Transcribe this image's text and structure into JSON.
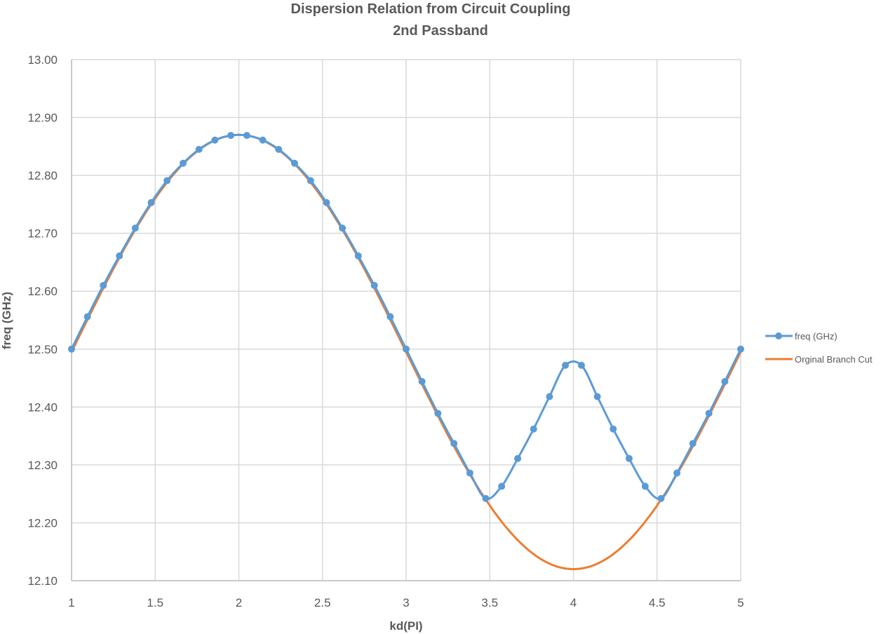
{
  "chart_data": {
    "type": "line",
    "title": "Dispersion Relation from Circuit Coupling",
    "subtitle": "2nd Passband",
    "xlabel": "kd(PI)",
    "ylabel": "freq (GHz)",
    "xlim": [
      1,
      5
    ],
    "ylim": [
      12.1,
      13.0
    ],
    "xticks": [
      "1",
      "1.5",
      "2",
      "2.5",
      "3",
      "3.5",
      "4",
      "4.5",
      "5"
    ],
    "yticks": [
      "13.00",
      "12.90",
      "12.80",
      "12.70",
      "12.60",
      "12.50",
      "12.40",
      "12.30",
      "12.20",
      "12.10"
    ],
    "grid": true,
    "legend_position": "right",
    "series": [
      {
        "name": "freq (GHz)",
        "color": "#5B9BD5",
        "style": "smooth-line-with-markers",
        "x": [
          1.0,
          1.095,
          1.19,
          1.286,
          1.381,
          1.476,
          1.571,
          1.667,
          1.762,
          1.857,
          1.952,
          2.048,
          2.143,
          2.238,
          2.333,
          2.429,
          2.524,
          2.619,
          2.714,
          2.81,
          2.905,
          3.0,
          3.095,
          3.19,
          3.286,
          3.381,
          3.476,
          3.571,
          3.667,
          3.762,
          3.857,
          3.952,
          4.048,
          4.143,
          4.238,
          4.333,
          4.429,
          4.524,
          4.619,
          4.714,
          4.81,
          4.905,
          5.0
        ],
        "values": [
          12.5,
          12.556,
          12.61,
          12.661,
          12.709,
          12.753,
          12.791,
          12.821,
          12.845,
          12.861,
          12.869,
          12.869,
          12.861,
          12.845,
          12.821,
          12.791,
          12.753,
          12.709,
          12.661,
          12.61,
          12.556,
          12.5,
          12.444,
          12.389,
          12.337,
          12.286,
          12.242,
          12.263,
          12.311,
          12.362,
          12.418,
          12.472,
          12.472,
          12.418,
          12.362,
          12.311,
          12.263,
          12.242,
          12.286,
          12.337,
          12.389,
          12.444,
          12.5
        ]
      },
      {
        "name": "Orginal Branch Cut",
        "color": "#ED7D31",
        "style": "smooth-line",
        "formula_hint": "12.495 + 0.375*sin(pi*(x-1)/2)",
        "peak": [
          2,
          12.87
        ],
        "trough": [
          4,
          12.12
        ]
      }
    ]
  },
  "legend": {
    "items": [
      {
        "label": "freq (GHz)",
        "color": "#5B9BD5"
      },
      {
        "label": "Orginal Branch Cut",
        "color": "#ED7D31"
      }
    ]
  }
}
